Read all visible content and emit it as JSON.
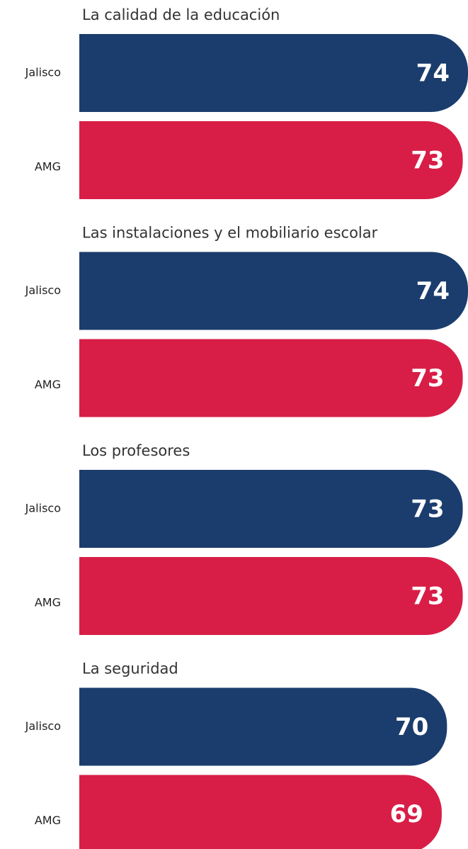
{
  "chart_data": {
    "type": "bar",
    "orientation": "horizontal",
    "categories": [
      "La calidad de la educación",
      "Las instalaciones y el mobiliario escolar",
      "Los profesores",
      "La seguridad"
    ],
    "series": [
      {
        "name": "Jalisco",
        "color": "#1b3d6d",
        "values": [
          74,
          74,
          73,
          70
        ]
      },
      {
        "name": "AMG",
        "color": "#d81e47",
        "values": [
          73,
          73,
          73,
          69
        ]
      }
    ]
  }
}
